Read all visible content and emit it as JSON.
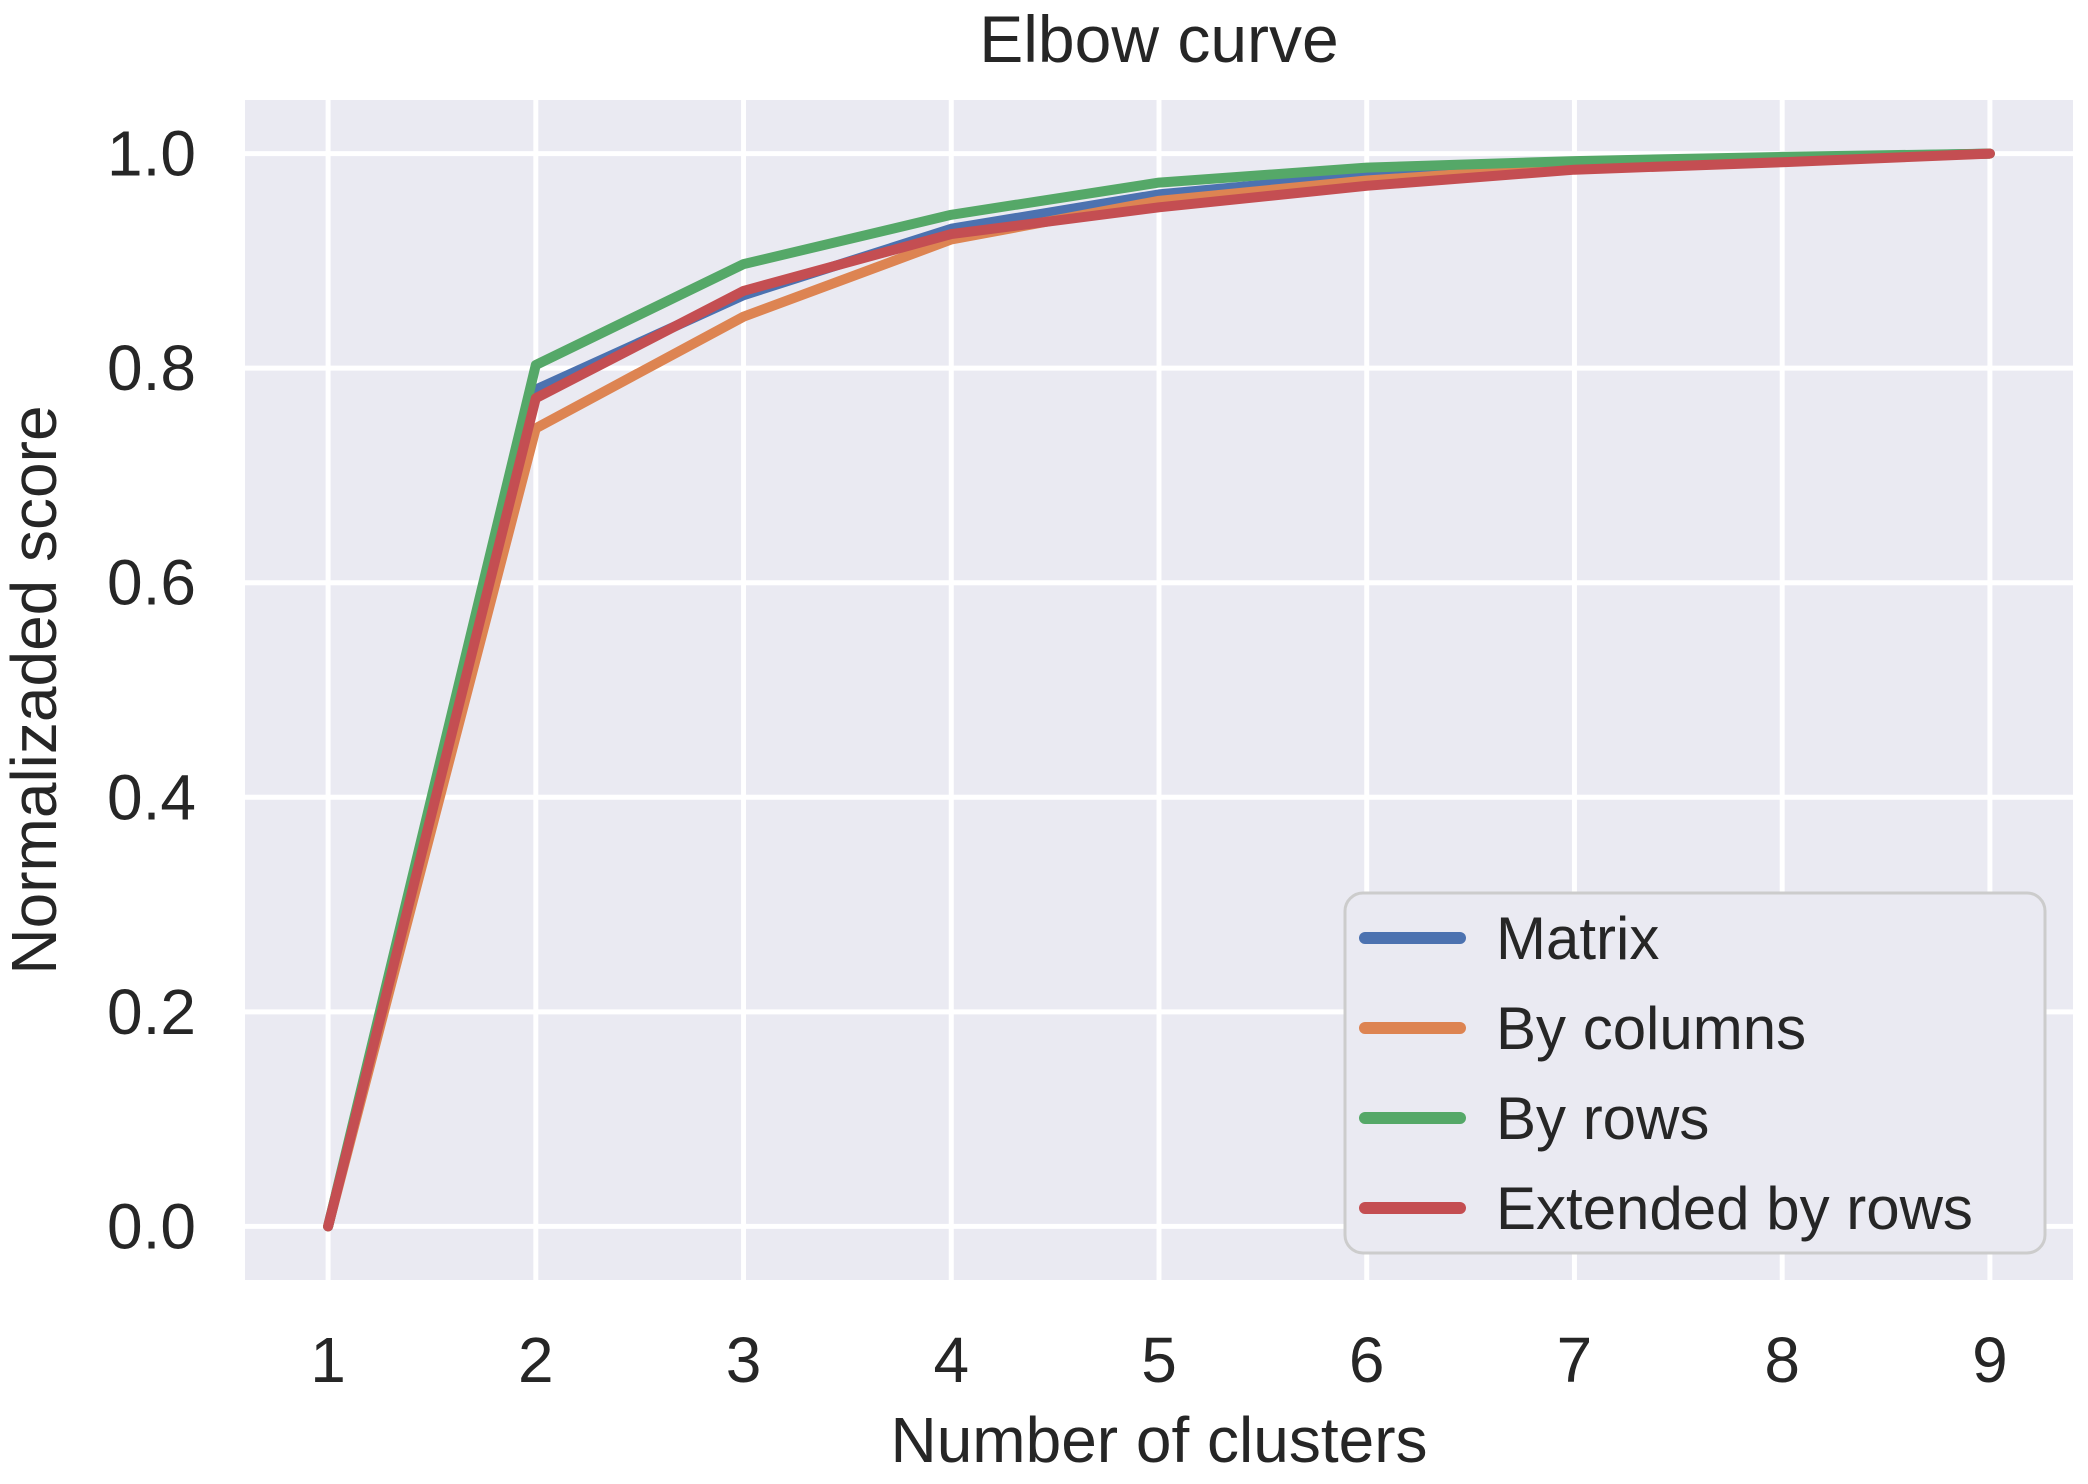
{
  "figure": {
    "background": "#ffffff",
    "axes_background": "#eaeaf2",
    "grid_color": "#ffffff",
    "text_color": "#262626",
    "legend_background": "#eaeaf2",
    "legend_border_color": "#cccccc"
  },
  "chart_data": {
    "type": "line",
    "title": "Elbow curve",
    "xlabel": "Number of clusters",
    "ylabel": "Normalizaded score",
    "x": [
      1,
      2,
      3,
      4,
      5,
      6,
      7,
      8,
      9
    ],
    "xticks": [
      "1",
      "2",
      "3",
      "4",
      "5",
      "6",
      "7",
      "8",
      "9"
    ],
    "yticks": [
      "0.0",
      "0.2",
      "0.4",
      "0.6",
      "0.8",
      "1.0"
    ],
    "xlim": [
      0.6,
      9.4
    ],
    "ylim": [
      -0.05,
      1.05
    ],
    "grid": true,
    "legend_position": "lower right",
    "series": [
      {
        "name": "Matrix",
        "color": "#4C72B0",
        "values": [
          0.0,
          0.78,
          0.868,
          0.93,
          0.962,
          0.98,
          0.99,
          0.996,
          1.0
        ]
      },
      {
        "name": "By columns",
        "color": "#DD8452",
        "values": [
          0.0,
          0.744,
          0.848,
          0.92,
          0.956,
          0.975,
          0.988,
          0.995,
          1.0
        ]
      },
      {
        "name": "By rows",
        "color": "#55A868",
        "values": [
          0.0,
          0.803,
          0.897,
          0.943,
          0.973,
          0.987,
          0.993,
          0.997,
          1.0
        ]
      },
      {
        "name": "Extended by rows",
        "color": "#C44E52",
        "values": [
          0.0,
          0.772,
          0.872,
          0.925,
          0.95,
          0.97,
          0.985,
          0.992,
          1.0
        ]
      }
    ]
  }
}
